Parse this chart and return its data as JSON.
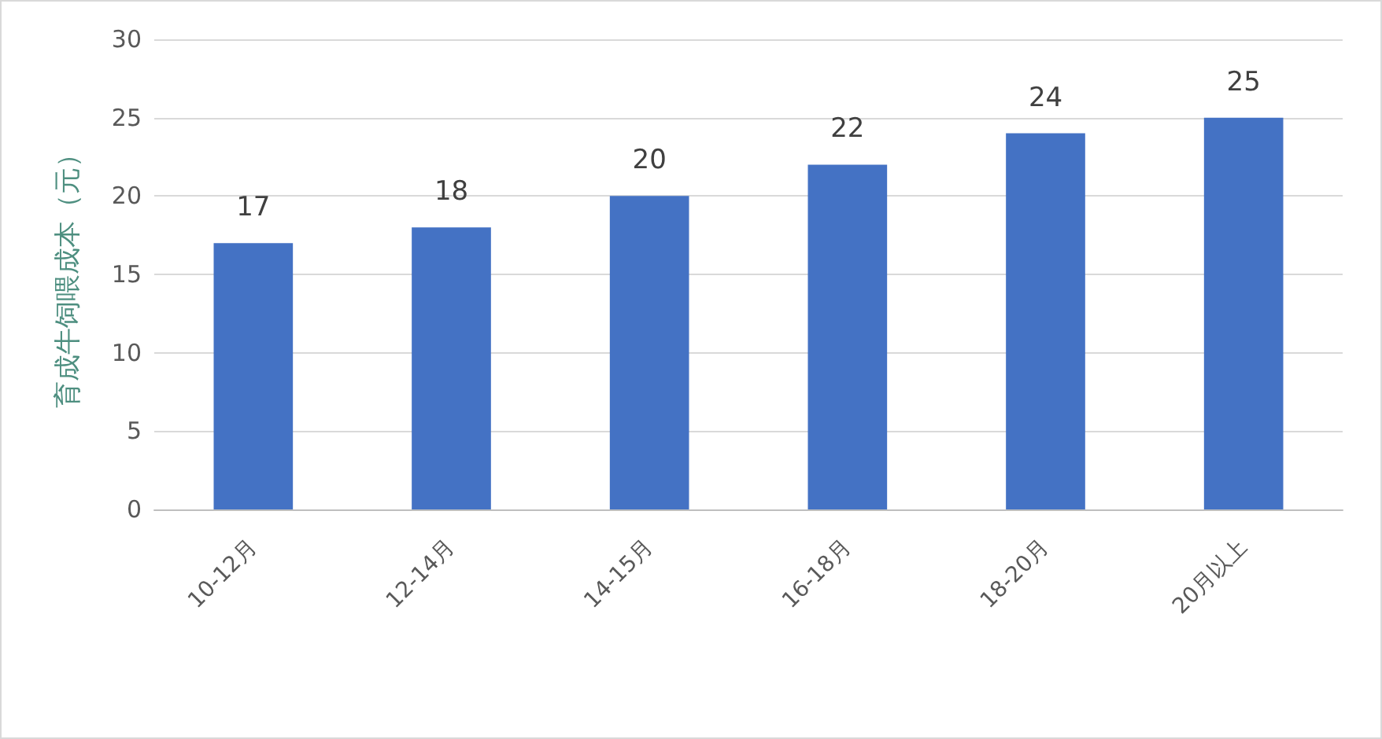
{
  "chart_data": {
    "type": "bar",
    "ylabel": "育成牛饲喂成本（元）",
    "categories": [
      "10-12月",
      "12-14月",
      "14-15月",
      "16-18月",
      "18-20月",
      "20月以上"
    ],
    "values": [
      17,
      18,
      20,
      22,
      24,
      25
    ],
    "color": "#4472c4",
    "ylim": [
      0,
      30
    ],
    "yticks": [
      0,
      5,
      10,
      15,
      20,
      25,
      30
    ],
    "grid": "y",
    "data_labels": true
  }
}
